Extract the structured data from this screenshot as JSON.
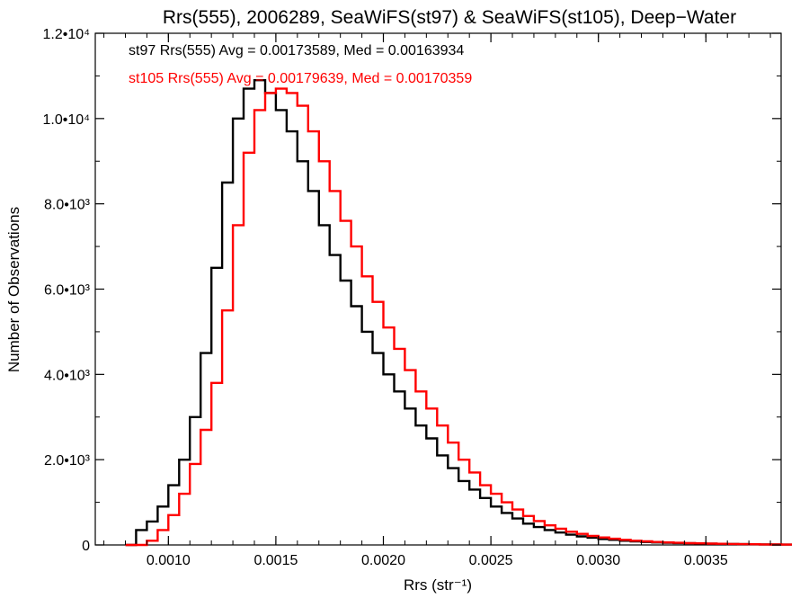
{
  "chart_data": {
    "type": "line",
    "title": "Rrs(555), 2006289, SeaWiFS(st97) & SeaWiFS(st105), Deep−Water",
    "xlabel": "Rrs (str⁻¹)",
    "ylabel": "Number of Observations",
    "xlim": [
      0.00066,
      0.00385
    ],
    "ylim": [
      0,
      12000
    ],
    "x_ticks": [
      0.001,
      0.0015,
      0.002,
      0.0025,
      0.003,
      0.0035
    ],
    "x_tick_labels": [
      "0.0010",
      "0.0015",
      "0.0020",
      "0.0025",
      "0.0030",
      "0.0035"
    ],
    "y_ticks": [
      0,
      2000,
      4000,
      6000,
      8000,
      10000,
      12000
    ],
    "y_tick_labels": [
      "0",
      "2.0•10³",
      "4.0•10³",
      "6.0•10³",
      "8.0•10³",
      "1.0•10⁴",
      "1.2•10⁴"
    ],
    "grid": false,
    "step": "histogram",
    "annotations": [
      {
        "text": "st97 Rrs(555) Avg = 0.00173589, Med = 0.00163934",
        "color": "#000000"
      },
      {
        "text": "st105 Rrs(555) Avg = 0.00179639, Med = 0.00170359",
        "color": "#ff0000"
      }
    ],
    "series": [
      {
        "color": "#000000",
        "x": [
          0.0008,
          0.00085,
          0.0009,
          0.00095,
          0.001,
          0.00105,
          0.0011,
          0.00115,
          0.0012,
          0.00125,
          0.0013,
          0.00135,
          0.0014,
          0.00145,
          0.0015,
          0.00155,
          0.0016,
          0.00165,
          0.0017,
          0.00175,
          0.0018,
          0.00185,
          0.0019,
          0.00195,
          0.002,
          0.00205,
          0.0021,
          0.00215,
          0.0022,
          0.00225,
          0.0023,
          0.00235,
          0.0024,
          0.00245,
          0.0025,
          0.00255,
          0.0026,
          0.00265,
          0.0027,
          0.00275,
          0.0028,
          0.00285,
          0.0029,
          0.00295,
          0.003,
          0.00305,
          0.0031,
          0.00315,
          0.0032,
          0.00325,
          0.0033,
          0.00335,
          0.0034,
          0.00345,
          0.0035,
          0.00355,
          0.0036,
          0.00365,
          0.0037,
          0.00375,
          0.0038,
          0.00385
        ],
        "values": [
          0,
          350,
          550,
          900,
          1400,
          2000,
          3000,
          4500,
          6500,
          8500,
          10000,
          10700,
          10900,
          10600,
          10200,
          9700,
          9000,
          8300,
          7500,
          6800,
          6200,
          5600,
          5000,
          4500,
          4000,
          3600,
          3200,
          2800,
          2500,
          2100,
          1800,
          1500,
          1300,
          1100,
          900,
          750,
          620,
          500,
          420,
          350,
          290,
          240,
          200,
          170,
          140,
          120,
          100,
          85,
          70,
          60,
          50,
          45,
          40,
          35,
          30,
          26,
          22,
          18,
          15,
          12,
          10,
          8
        ]
      },
      {
        "color": "#ff0000",
        "x": [
          0.0008,
          0.00085,
          0.0009,
          0.00095,
          0.001,
          0.00105,
          0.0011,
          0.00115,
          0.0012,
          0.00125,
          0.0013,
          0.00135,
          0.0014,
          0.00145,
          0.0015,
          0.00155,
          0.0016,
          0.00165,
          0.0017,
          0.00175,
          0.0018,
          0.00185,
          0.0019,
          0.00195,
          0.002,
          0.00205,
          0.0021,
          0.00215,
          0.0022,
          0.00225,
          0.0023,
          0.00235,
          0.0024,
          0.00245,
          0.0025,
          0.00255,
          0.0026,
          0.00265,
          0.0027,
          0.00275,
          0.0028,
          0.00285,
          0.0029,
          0.00295,
          0.003,
          0.00305,
          0.0031,
          0.00315,
          0.0032,
          0.00325,
          0.0033,
          0.00335,
          0.0034,
          0.00345,
          0.0035,
          0.00355,
          0.0036,
          0.00365,
          0.0037,
          0.00375,
          0.0038,
          0.00385
        ],
        "values": [
          0,
          0,
          100,
          350,
          700,
          1200,
          1900,
          2700,
          3800,
          5500,
          7500,
          9200,
          10200,
          10600,
          10700,
          10600,
          10300,
          9700,
          9000,
          8300,
          7600,
          7000,
          6300,
          5700,
          5100,
          4600,
          4100,
          3600,
          3200,
          2800,
          2400,
          2000,
          1700,
          1400,
          1200,
          1000,
          830,
          680,
          560,
          460,
          380,
          310,
          260,
          210,
          175,
          145,
          120,
          100,
          85,
          70,
          58,
          50,
          43,
          37,
          32,
          27,
          23,
          19,
          16,
          13,
          11,
          9
        ]
      }
    ]
  }
}
